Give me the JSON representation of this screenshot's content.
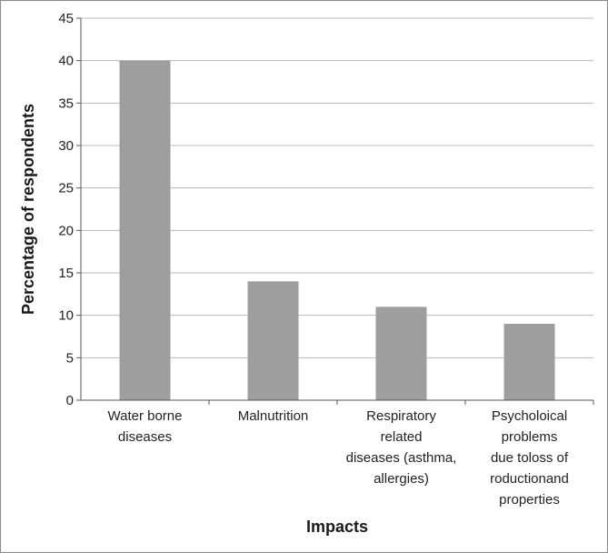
{
  "chart_data": {
    "type": "bar",
    "title": "",
    "categories": [
      [
        "Water borne",
        "diseases"
      ],
      [
        "Malnutrition"
      ],
      [
        "Respiratory",
        "related",
        "diseases (asthma,",
        "allergies)"
      ],
      [
        "Psycholoical",
        "problems",
        "due toloss of",
        "roductionand",
        "properties"
      ]
    ],
    "values": [
      40,
      14,
      11,
      9
    ],
    "xlabel": "Impacts",
    "ylabel": "Percentage of respondents",
    "ylim": [
      0,
      45
    ],
    "yticks": [
      0,
      5,
      10,
      15,
      20,
      25,
      30,
      35,
      40,
      45
    ],
    "grid": true,
    "legend": "none",
    "colors": {
      "bar": "#9e9e9e",
      "grid": "#b8b8b8",
      "axis": "#555555"
    }
  }
}
